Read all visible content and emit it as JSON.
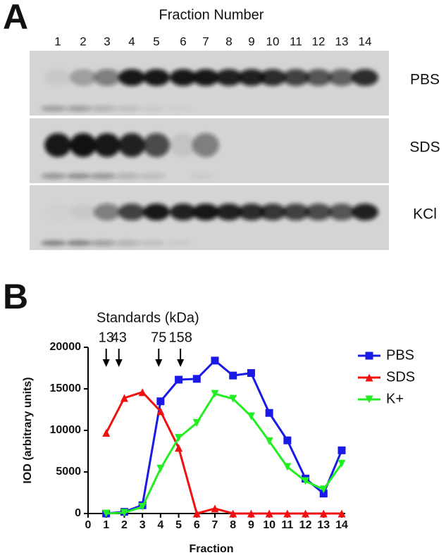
{
  "panel_a": {
    "label": "A",
    "title": "Fraction Number",
    "lanes": [
      "1",
      "2",
      "3",
      "4",
      "5",
      "6",
      "7",
      "8",
      "9",
      "10",
      "11",
      "12",
      "13",
      "14"
    ],
    "blots": [
      "PBS",
      "SDS",
      "KCl"
    ]
  },
  "panel_b": {
    "label": "B"
  },
  "chart_data": {
    "type": "line",
    "annotation": "Standards (kDa)",
    "standards": {
      "labels": [
        "13",
        "43",
        "75",
        "158"
      ],
      "x": [
        1,
        1.7,
        3.9,
        5.1
      ]
    },
    "x": [
      1,
      2,
      3,
      4,
      5,
      6,
      7,
      8,
      9,
      10,
      11,
      12,
      13,
      14
    ],
    "series": [
      {
        "name": "PBS",
        "color": "#1a1ae6",
        "marker": "square",
        "values": [
          0,
          200,
          1000,
          13500,
          16100,
          16200,
          18400,
          16600,
          16900,
          12100,
          8800,
          4200,
          2400,
          7600
        ]
      },
      {
        "name": "SDS",
        "color": "#f01010",
        "marker": "triangle-up",
        "values": [
          9700,
          13900,
          14600,
          12300,
          7900,
          0,
          600,
          0,
          0,
          0,
          0,
          0,
          0,
          0
        ]
      },
      {
        "name": "K+",
        "color": "#22ee22",
        "marker": "triangle-down",
        "values": [
          0,
          100,
          800,
          5400,
          9100,
          10900,
          14400,
          13800,
          11700,
          8700,
          5600,
          3900,
          2900,
          6000
        ]
      }
    ],
    "xlabel": "Fraction",
    "ylabel": "IOD (arbitrary units)",
    "xlim": [
      0,
      14
    ],
    "xticks": [
      0,
      1,
      2,
      3,
      4,
      5,
      6,
      7,
      8,
      9,
      10,
      11,
      12,
      13,
      14
    ],
    "ylim": [
      0,
      20000
    ],
    "yticks": [
      0,
      5000,
      10000,
      15000,
      20000
    ],
    "legend": "upper right"
  }
}
